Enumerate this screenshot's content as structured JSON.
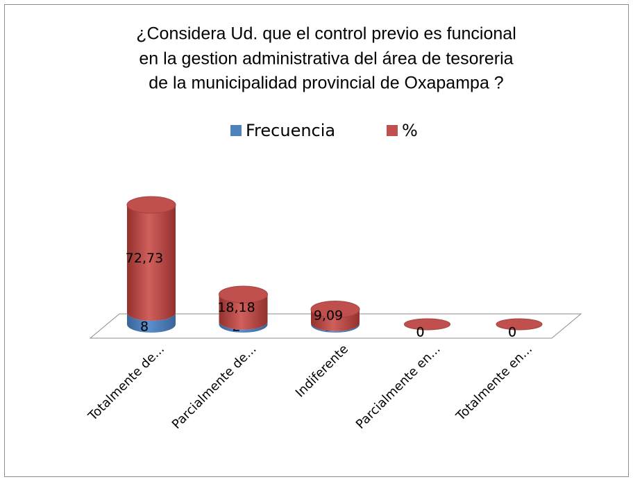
{
  "chart_data": {
    "type": "cylinder_stacked",
    "title": [
      "¿Considera Ud. que el control previo es funcional",
      "en la gestion administrativa del área de tesoreria",
      "de la municipalidad provincial de Oxapampa ?"
    ],
    "categories": [
      "Totalmente de...",
      "Parcialmente de...",
      "Indiferente",
      "Parcialmente en...",
      "Totalmente en..."
    ],
    "series": [
      {
        "name": "Frecuencia",
        "color": "#4f81bd",
        "values": [
          8,
          2,
          1,
          0,
          0
        ]
      },
      {
        "name": "%",
        "color": "#c0504d",
        "values": [
          72.73,
          18.18,
          9.09,
          0,
          0
        ],
        "value_labels": [
          "72,73",
          "18,18",
          "9,09",
          "0",
          "0"
        ]
      }
    ],
    "legend": "top"
  }
}
